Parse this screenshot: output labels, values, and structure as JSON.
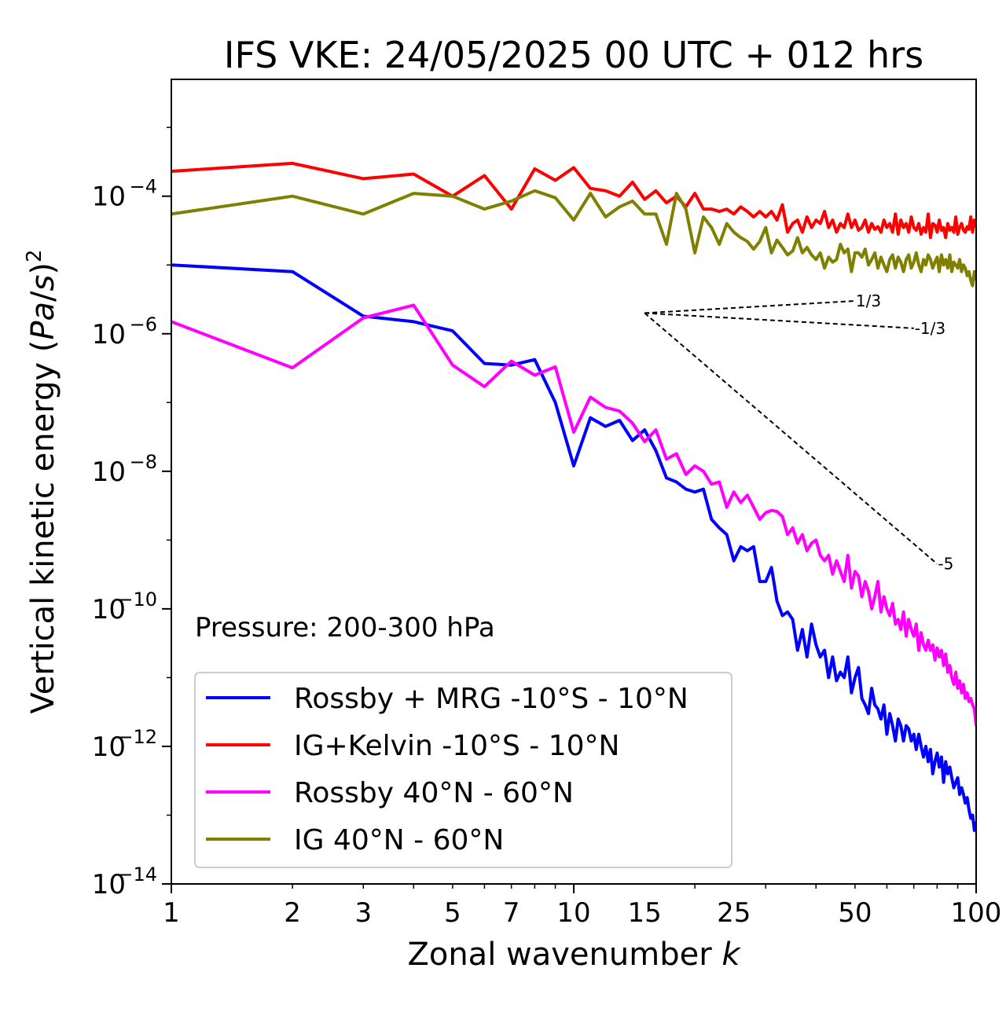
{
  "chart_data": {
    "type": "line",
    "title": "IFS VKE: 24/05/2025 00 UTC + 012 hrs",
    "xlabel": "Zonal wavenumber k",
    "ylabel": "Vertical kinetic energy (Pa/s)^2",
    "xscale": "log",
    "yscale": "log",
    "xlim": [
      1,
      100
    ],
    "ylim": [
      1e-14,
      0.005
    ],
    "xticks": [
      1,
      2,
      3,
      5,
      7,
      10,
      15,
      25,
      50,
      100
    ],
    "xtick_labels": [
      "1",
      "2",
      "3",
      "5",
      "7",
      "10",
      "15",
      "25",
      "50",
      "100"
    ],
    "yticks": [
      {
        "value": 0.0001,
        "base": "10",
        "exp": "−4"
      },
      {
        "value": 1e-06,
        "base": "10",
        "exp": "−6"
      },
      {
        "value": 1e-08,
        "base": "10",
        "exp": "−8"
      },
      {
        "value": 1e-10,
        "base": "10",
        "exp": "−10"
      },
      {
        "value": 1e-12,
        "base": "10",
        "exp": "−12"
      },
      {
        "value": 1e-14,
        "base": "10",
        "exp": "−14"
      }
    ],
    "annotation": "Pressure: 200-300 hPa",
    "legend_placement": "lower-left",
    "series": [
      {
        "name": "Rossby + MRG -10°S - 10°N",
        "color": "#0000ff",
        "x": [
          1,
          2,
          3,
          4,
          5,
          6,
          7,
          8,
          9,
          10,
          11,
          12,
          13,
          14,
          15,
          16,
          17,
          18,
          19,
          20,
          21,
          22,
          23,
          24,
          25,
          26,
          27,
          28,
          29,
          30,
          31,
          32,
          33,
          34,
          35,
          36,
          37,
          38,
          39,
          40,
          41,
          42,
          43,
          44,
          45,
          46,
          47,
          48,
          49,
          50,
          51,
          52,
          53,
          54,
          55,
          56,
          57,
          58,
          59,
          60,
          61,
          62,
          63,
          64,
          65,
          66,
          67,
          68,
          69,
          70,
          71,
          72,
          73,
          74,
          75,
          76,
          77,
          78,
          79,
          80,
          81,
          82,
          83,
          84,
          85,
          86,
          87,
          88,
          89,
          90,
          91,
          92,
          93,
          94,
          95,
          96,
          97,
          98,
          99,
          100
        ],
        "y": [
          1e-05,
          8e-06,
          1.8e-06,
          1.5e-06,
          1.1e-06,
          3.7e-07,
          3.5e-07,
          4.2e-07,
          1e-07,
          1.2e-08,
          6e-08,
          4.5e-08,
          5.5e-08,
          2.8e-08,
          4e-08,
          2e-08,
          8e-09,
          7e-09,
          5.5e-09,
          5e-09,
          5.5e-09,
          2e-09,
          1.5e-09,
          1.2e-09,
          5e-10,
          8e-10,
          7e-10,
          8e-10,
          2.5e-10,
          2.5e-10,
          4e-10,
          1.3e-10,
          8e-11,
          9e-11,
          7e-11,
          2.5e-11,
          5e-11,
          2e-11,
          6e-11,
          3e-11,
          2e-11,
          2.5e-11,
          1e-11,
          2e-11,
          9e-12,
          1.2e-11,
          1e-11,
          2e-11,
          6e-12,
          1e-11,
          1.4e-11,
          5e-12,
          4e-12,
          3e-12,
          7e-12,
          4e-12,
          3.5e-12,
          2.5e-12,
          4e-12,
          1.5e-12,
          3e-12,
          2e-12,
          1.2e-12,
          2.5e-12,
          2e-12,
          1.2e-12,
          2e-12,
          1.8e-12,
          1.2e-12,
          1.5e-12,
          9e-13,
          1.5e-12,
          1e-12,
          7e-13,
          1e-12,
          6e-13,
          9e-13,
          4e-13,
          6e-13,
          8e-13,
          5e-13,
          7e-13,
          3e-13,
          6e-13,
          4e-13,
          5e-13,
          3.5e-13,
          2.5e-13,
          3e-13,
          3.5e-13,
          2e-13,
          2.5e-13,
          2e-13,
          1.5e-13,
          1.8e-13,
          1.2e-13,
          9e-14,
          1e-13,
          6e-14,
          8e-14
        ]
      },
      {
        "name": "IG+Kelvin -10°S - 10°N",
        "color": "#ff0000",
        "x": [
          1,
          2,
          3,
          4,
          5,
          6,
          7,
          8,
          9,
          10,
          11,
          12,
          13,
          14,
          15,
          16,
          17,
          18,
          19,
          20,
          21,
          22,
          23,
          24,
          25,
          26,
          27,
          28,
          29,
          30,
          31,
          32,
          33,
          34,
          35,
          36,
          37,
          38,
          39,
          40,
          41,
          42,
          43,
          44,
          45,
          46,
          47,
          48,
          49,
          50,
          51,
          52,
          53,
          54,
          55,
          56,
          57,
          58,
          59,
          60,
          61,
          62,
          63,
          64,
          65,
          66,
          67,
          68,
          69,
          70,
          71,
          72,
          73,
          74,
          75,
          76,
          77,
          78,
          79,
          80,
          81,
          82,
          83,
          84,
          85,
          86,
          87,
          88,
          89,
          90,
          91,
          92,
          93,
          94,
          95,
          96,
          97,
          98,
          99,
          100
        ],
        "y": [
          0.00023,
          0.0003,
          0.00018,
          0.00021,
          0.0001,
          0.0002,
          6.5e-05,
          0.00025,
          0.00017,
          0.00026,
          0.00013,
          0.00012,
          0.0001,
          0.00016,
          9e-05,
          0.00012,
          8e-05,
          0.0001,
          7e-05,
          0.00011,
          6.5e-05,
          6.5e-05,
          6e-05,
          6.5e-05,
          5.5e-05,
          7e-05,
          6e-05,
          5e-05,
          6e-05,
          5e-05,
          6e-05,
          4.5e-05,
          7.5e-05,
          3e-05,
          4e-05,
          4.5e-05,
          3e-05,
          5e-05,
          3.5e-05,
          4.5e-05,
          4e-05,
          6e-05,
          3.5e-05,
          4.5e-05,
          3e-05,
          4e-05,
          3.5e-05,
          5.5e-05,
          3.5e-05,
          4.5e-05,
          3.2e-05,
          3.5e-05,
          4.5e-05,
          3e-05,
          4e-05,
          3.3e-05,
          3.6e-05,
          3e-05,
          4.5e-05,
          3.5e-05,
          4e-05,
          3e-05,
          5.5e-05,
          2.8e-05,
          4.5e-05,
          3.5e-05,
          4e-05,
          3e-05,
          5e-05,
          3.5e-05,
          3.2e-05,
          4e-05,
          2.8e-05,
          3.5e-05,
          3e-05,
          5.5e-05,
          2.5e-05,
          4e-05,
          3.8e-05,
          3e-05,
          4.5e-05,
          3.2e-05,
          3.5e-05,
          2.5e-05,
          4e-05,
          3.2e-05,
          3.5e-05,
          3e-05,
          5e-05,
          2.8e-05,
          3.5e-05,
          4e-05,
          3.2e-05,
          3e-05,
          3.6e-05,
          3.3e-05,
          5e-05,
          3e-05,
          4.5e-05,
          3.5e-05
        ]
      },
      {
        "name": "Rossby 40°N - 60°N",
        "color": "#ff00ff",
        "x": [
          1,
          2,
          3,
          4,
          5,
          6,
          7,
          8,
          9,
          10,
          11,
          12,
          13,
          14,
          15,
          16,
          17,
          18,
          19,
          20,
          21,
          22,
          23,
          24,
          25,
          26,
          27,
          28,
          29,
          30,
          31,
          32,
          33,
          34,
          35,
          36,
          37,
          38,
          39,
          40,
          41,
          42,
          43,
          44,
          45,
          46,
          47,
          48,
          49,
          50,
          51,
          52,
          53,
          54,
          55,
          56,
          57,
          58,
          59,
          60,
          61,
          62,
          63,
          64,
          65,
          66,
          67,
          68,
          69,
          70,
          71,
          72,
          73,
          74,
          75,
          76,
          77,
          78,
          79,
          80,
          81,
          82,
          83,
          84,
          85,
          86,
          87,
          88,
          89,
          90,
          91,
          92,
          93,
          94,
          95,
          96,
          97,
          98,
          99,
          100
        ],
        "y": [
          1.5e-06,
          3.2e-07,
          1.7e-06,
          2.6e-06,
          3.5e-07,
          1.7e-07,
          4e-07,
          2.5e-07,
          3.3e-07,
          3.7e-08,
          1.2e-07,
          8.5e-08,
          7.5e-08,
          5e-08,
          2.7e-08,
          4e-08,
          1.5e-08,
          1.8e-08,
          9e-09,
          1.2e-08,
          1e-08,
          6.5e-09,
          7e-09,
          3e-09,
          5e-09,
          3.5e-09,
          4.5e-09,
          3e-09,
          2e-09,
          2.5e-09,
          2.7e-09,
          2.6e-09,
          2.2e-09,
          1.2e-09,
          1.5e-09,
          9e-10,
          1.2e-09,
          7e-10,
          9e-10,
          1e-09,
          6e-10,
          5e-10,
          6e-10,
          3.2e-10,
          5e-10,
          3.5e-10,
          2.5e-10,
          6e-10,
          2e-10,
          3.5e-10,
          3e-10,
          1.5e-10,
          2.5e-10,
          1.8e-10,
          1e-10,
          1.5e-10,
          2.5e-10,
          9e-11,
          1.5e-10,
          1e-10,
          8e-11,
          1.2e-10,
          6e-11,
          7e-11,
          5e-11,
          9e-11,
          4e-11,
          7e-11,
          5e-11,
          4e-11,
          6e-11,
          2.5e-11,
          4.5e-11,
          3e-11,
          2.5e-11,
          3.5e-11,
          2.5e-11,
          3e-11,
          1.8e-11,
          2.7e-11,
          2e-11,
          2.5e-11,
          1.5e-11,
          2.2e-11,
          1.2e-11,
          1.5e-11,
          1e-11,
          8e-12,
          1.2e-11,
          7e-12,
          9e-12,
          6e-12,
          8e-12,
          5e-12,
          6e-12,
          4.5e-12,
          5e-12,
          4e-12,
          3.5e-12,
          2e-12
        ]
      },
      {
        "name": "IG 40°N - 60°N",
        "color": "#808000",
        "x": [
          1,
          2,
          3,
          4,
          5,
          6,
          7,
          8,
          9,
          10,
          11,
          12,
          13,
          14,
          15,
          16,
          17,
          18,
          19,
          20,
          21,
          22,
          23,
          24,
          25,
          26,
          27,
          28,
          29,
          30,
          31,
          32,
          33,
          34,
          35,
          36,
          37,
          38,
          39,
          40,
          41,
          42,
          43,
          44,
          45,
          46,
          47,
          48,
          49,
          50,
          51,
          52,
          53,
          54,
          55,
          56,
          57,
          58,
          59,
          60,
          61,
          62,
          63,
          64,
          65,
          66,
          67,
          68,
          69,
          70,
          71,
          72,
          73,
          74,
          75,
          76,
          77,
          78,
          79,
          80,
          81,
          82,
          83,
          84,
          85,
          86,
          87,
          88,
          89,
          90,
          91,
          92,
          93,
          94,
          95,
          96,
          97,
          98,
          99,
          100
        ],
        "y": [
          5.5e-05,
          0.0001,
          5.5e-05,
          0.00011,
          0.0001,
          6.5e-05,
          8.5e-05,
          0.00012,
          9.5e-05,
          4.5e-05,
          0.00011,
          5e-05,
          7e-05,
          8.5e-05,
          5.5e-05,
          5.5e-05,
          2e-05,
          0.00011,
          6.5e-05,
          1.5e-05,
          5e-05,
          3.5e-05,
          2e-05,
          4e-05,
          3e-05,
          2.5e-05,
          2.2e-05,
          1.7e-05,
          2.2e-05,
          3.5e-05,
          1.5e-05,
          2.3e-05,
          1.8e-05,
          1.4e-05,
          1.6e-05,
          2.5e-05,
          1.5e-05,
          1.8e-05,
          1.4e-05,
          1.2e-05,
          1.5e-05,
          9e-06,
          1.3e-05,
          1.1e-05,
          1.2e-05,
          2e-05,
          1.5e-05,
          1.7e-05,
          8e-06,
          1.5e-05,
          1.5e-05,
          1.3e-05,
          1.7e-05,
          1e-05,
          1.2e-05,
          1.5e-05,
          9e-06,
          1.3e-05,
          1e-05,
          8e-06,
          1.2e-05,
          1.4e-05,
          9e-06,
          1.3e-05,
          1.1e-05,
          8e-06,
          1.2e-05,
          1.4e-05,
          9e-06,
          1.1e-05,
          1.5e-05,
          1e-05,
          8e-06,
          1.2e-05,
          1e-05,
          1.4e-05,
          1.2e-05,
          9e-06,
          1.1e-05,
          1.3e-05,
          8e-06,
          1.4e-05,
          1e-05,
          1.2e-05,
          9e-06,
          1.4e-05,
          8e-06,
          1.1e-05,
          1e-05,
          9e-06,
          1.2e-05,
          8e-06,
          1e-05,
          9e-06,
          7e-06,
          8e-06,
          6e-06,
          5e-06,
          8e-06,
          6e-06
        ]
      }
    ],
    "reference_slopes": [
      {
        "label": "1/3",
        "x": [
          15,
          50
        ],
        "y": [
          2e-06,
          3e-06
        ]
      },
      {
        "label": "-1/3",
        "x": [
          15,
          70
        ],
        "y": [
          2e-06,
          1.2e-06
        ]
      },
      {
        "label": "-5",
        "x": [
          15,
          80
        ],
        "y": [
          2e-06,
          4.5e-10
        ]
      }
    ]
  }
}
